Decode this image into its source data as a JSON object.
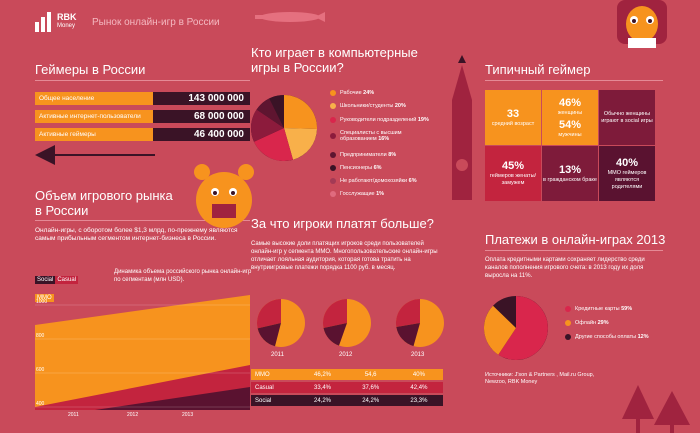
{
  "header": {
    "logo_line1": "RBK",
    "logo_line2": "Money",
    "title": "Рынок онлайн-игр в России"
  },
  "gamers": {
    "title": "Геймеры в России",
    "rows": [
      {
        "label": "Общее население",
        "value": "143 000 000",
        "color": "#f7931e"
      },
      {
        "label": "Активные интернет-пользователи",
        "value": "68 000 000",
        "color": "#f7931e"
      },
      {
        "label": "Активные геймеры",
        "value": "46 400 000",
        "color": "#f7931e"
      }
    ]
  },
  "market": {
    "title_line1": "Объем игрового рынка",
    "title_line2": "в России",
    "text": "Онлайн-игры, с оборотом более $1,3 млрд, по-прежнему являются самым прибыльным сегментом интернет-бизнеса в России.",
    "legend": [
      "Social",
      "Casual",
      "MMO"
    ],
    "dynamic_text": "Динамика объема российского рынка онлайн-игр по сегментам (млн USD).",
    "y_ticks": [
      "1000",
      "800",
      "600",
      "400"
    ],
    "x_ticks": [
      "2011",
      "2012",
      "2013"
    ]
  },
  "who": {
    "title_line1": "Кто играет в компьютерные",
    "title_line2": "игры в России?",
    "items": [
      {
        "label": "Рабочие",
        "value": "24%",
        "color": "#f7931e"
      },
      {
        "label": "Школьники/студенты",
        "value": "20%",
        "color": "#f8b04a"
      },
      {
        "label": "Руководители подразделений",
        "value": "19%",
        "color": "#d9264c"
      },
      {
        "label": "Специалисты с высшим образованием",
        "value": "16%",
        "color": "#8c1b3c"
      },
      {
        "label": "Предприниматели",
        "value": "8%",
        "color": "#5e1530"
      },
      {
        "label": "Пенсионеры",
        "value": "6%",
        "color": "#3a1326"
      },
      {
        "label": "Не работают/домохозяйки",
        "value": "6%",
        "color": "#a33a55"
      },
      {
        "label": "Госслужащие",
        "value": "1%",
        "color": "#e06b7e"
      }
    ]
  },
  "typical": {
    "title": "Типичный геймер",
    "cells": [
      {
        "big": "33",
        "small": "средний возраст",
        "bg": "#f7931e"
      },
      {
        "big": "46%",
        "small": "женщины",
        "bg": "#f7931e"
      },
      {
        "big": "",
        "small": "Обычно женщины играют в social игры",
        "bg": "#7e1b3a"
      },
      {
        "big": "54%",
        "small": "мужчины",
        "bg": "#f7931e"
      },
      {
        "big": "45%",
        "small": "геймеров женаты/замужем",
        "bg": "#c3243e"
      },
      {
        "big": "13%",
        "small": "в гражданском браке",
        "bg": "#7e1b3a"
      },
      {
        "big": "40%",
        "small": "MMO геймеров являются родителями",
        "bg": "#5a1230"
      }
    ]
  },
  "pay": {
    "title": "За что игроки платят больше?",
    "text": "Самые высокие доли платящих игроков среди пользователей онлайн-игр у сегмента MMO. Многопользовательские онлайн-игры отличает лояльная аудитория, которая готова тратить на внутриигровые платежи порядка 1100 руб. в месяц.",
    "years": [
      "2011",
      "2012",
      "2013"
    ],
    "table": [
      {
        "name": "MMO",
        "v": [
          "46,2%",
          "54,6",
          "40%"
        ]
      },
      {
        "name": "Casual",
        "v": [
          "33,4%",
          "37,6%",
          "42,4%"
        ]
      },
      {
        "name": "Social",
        "v": [
          "24,2%",
          "24,2%",
          "23,3%"
        ]
      }
    ]
  },
  "payments": {
    "title": "Платежи в онлайн-играх 2013",
    "text": "Оплата кредитными картами сохраняет лидерство среди каналов пополнения игрового счета: в 2013 году их доля выросла на 11%.",
    "items": [
      {
        "label": "Кредитные карты",
        "value": "59%",
        "color": "#d9264c"
      },
      {
        "label": "Офлайн",
        "value": "29%",
        "color": "#f7931e"
      },
      {
        "label": "Другие способы оплаты",
        "value": "12%",
        "color": "#3a1326"
      }
    ],
    "source": "Источники: J'son & Partners , Mail.ru Group, Newzoo, RBK Money"
  }
}
